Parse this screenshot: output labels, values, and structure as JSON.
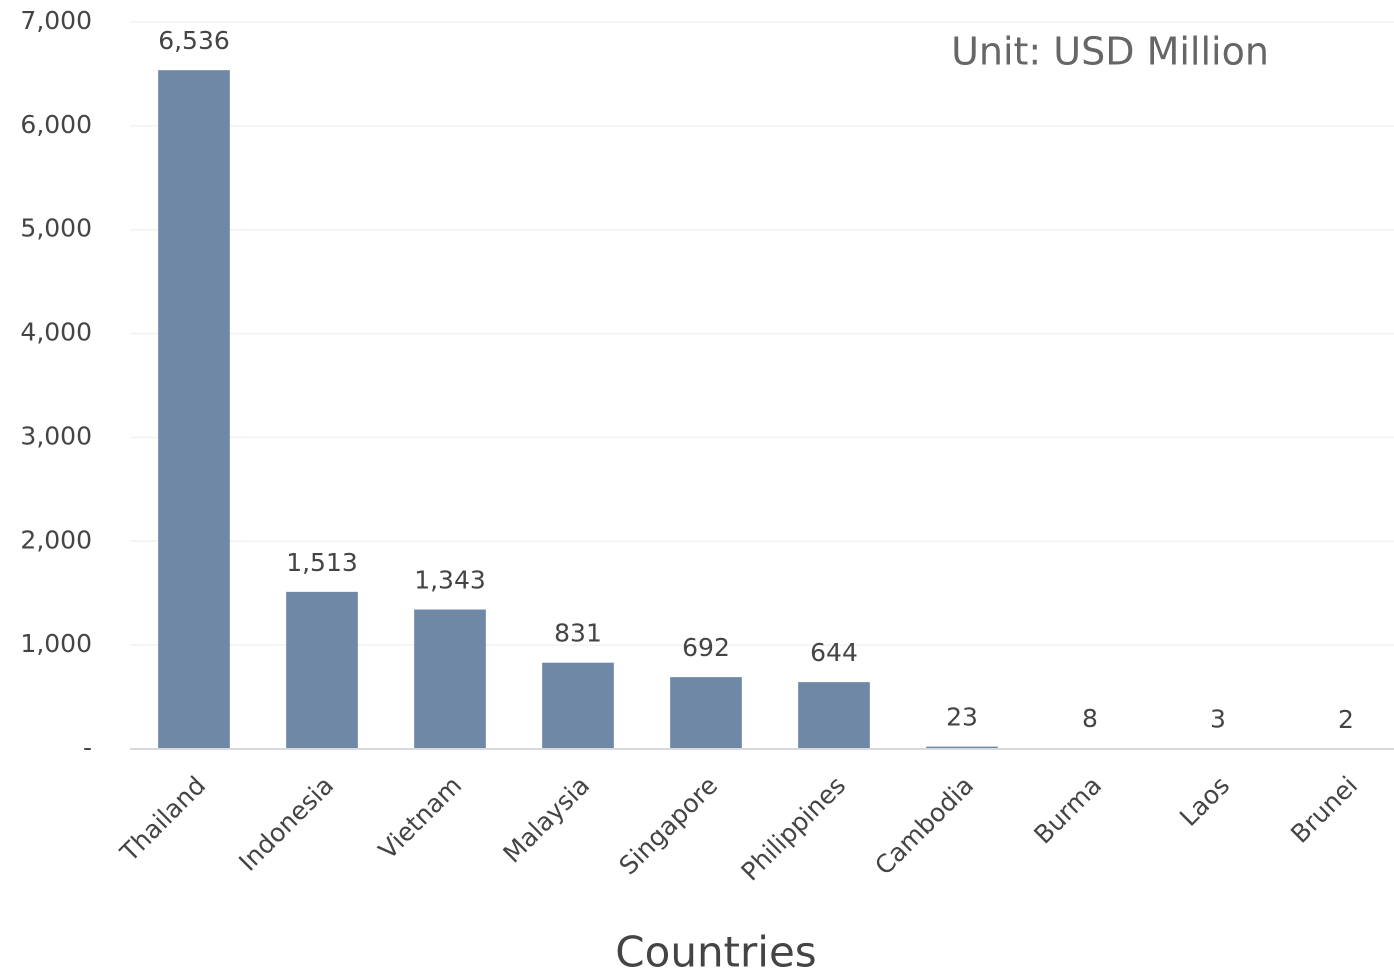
{
  "chart_data": {
    "type": "bar",
    "annotation": "Unit: USD Million",
    "x_label": "Countries",
    "categories": [
      "Thailand",
      "Indonesia",
      "Vietnam",
      "Malaysia",
      "Singapore",
      "Philippines",
      "Cambodia",
      "Burma",
      "Laos",
      "Brunei"
    ],
    "values": [
      6536,
      1513,
      1343,
      831,
      692,
      644,
      23,
      8,
      3,
      2
    ],
    "value_labels": [
      "6,536",
      "1,513",
      "1,343",
      "831",
      "692",
      "644",
      "23",
      "8",
      "3",
      "2"
    ],
    "color": "#6e88a5",
    "ylim": [
      0,
      7000
    ],
    "yticks": [
      {
        "value": 0,
        "label": "-"
      },
      {
        "value": 1000,
        "label": "1,000"
      },
      {
        "value": 2000,
        "label": "2,000"
      },
      {
        "value": 3000,
        "label": "3,000"
      },
      {
        "value": 4000,
        "label": "4,000"
      },
      {
        "value": 5000,
        "label": "5,000"
      },
      {
        "value": 6000,
        "label": "6,000"
      },
      {
        "value": 7000,
        "label": "7,000"
      }
    ],
    "grid": true
  }
}
